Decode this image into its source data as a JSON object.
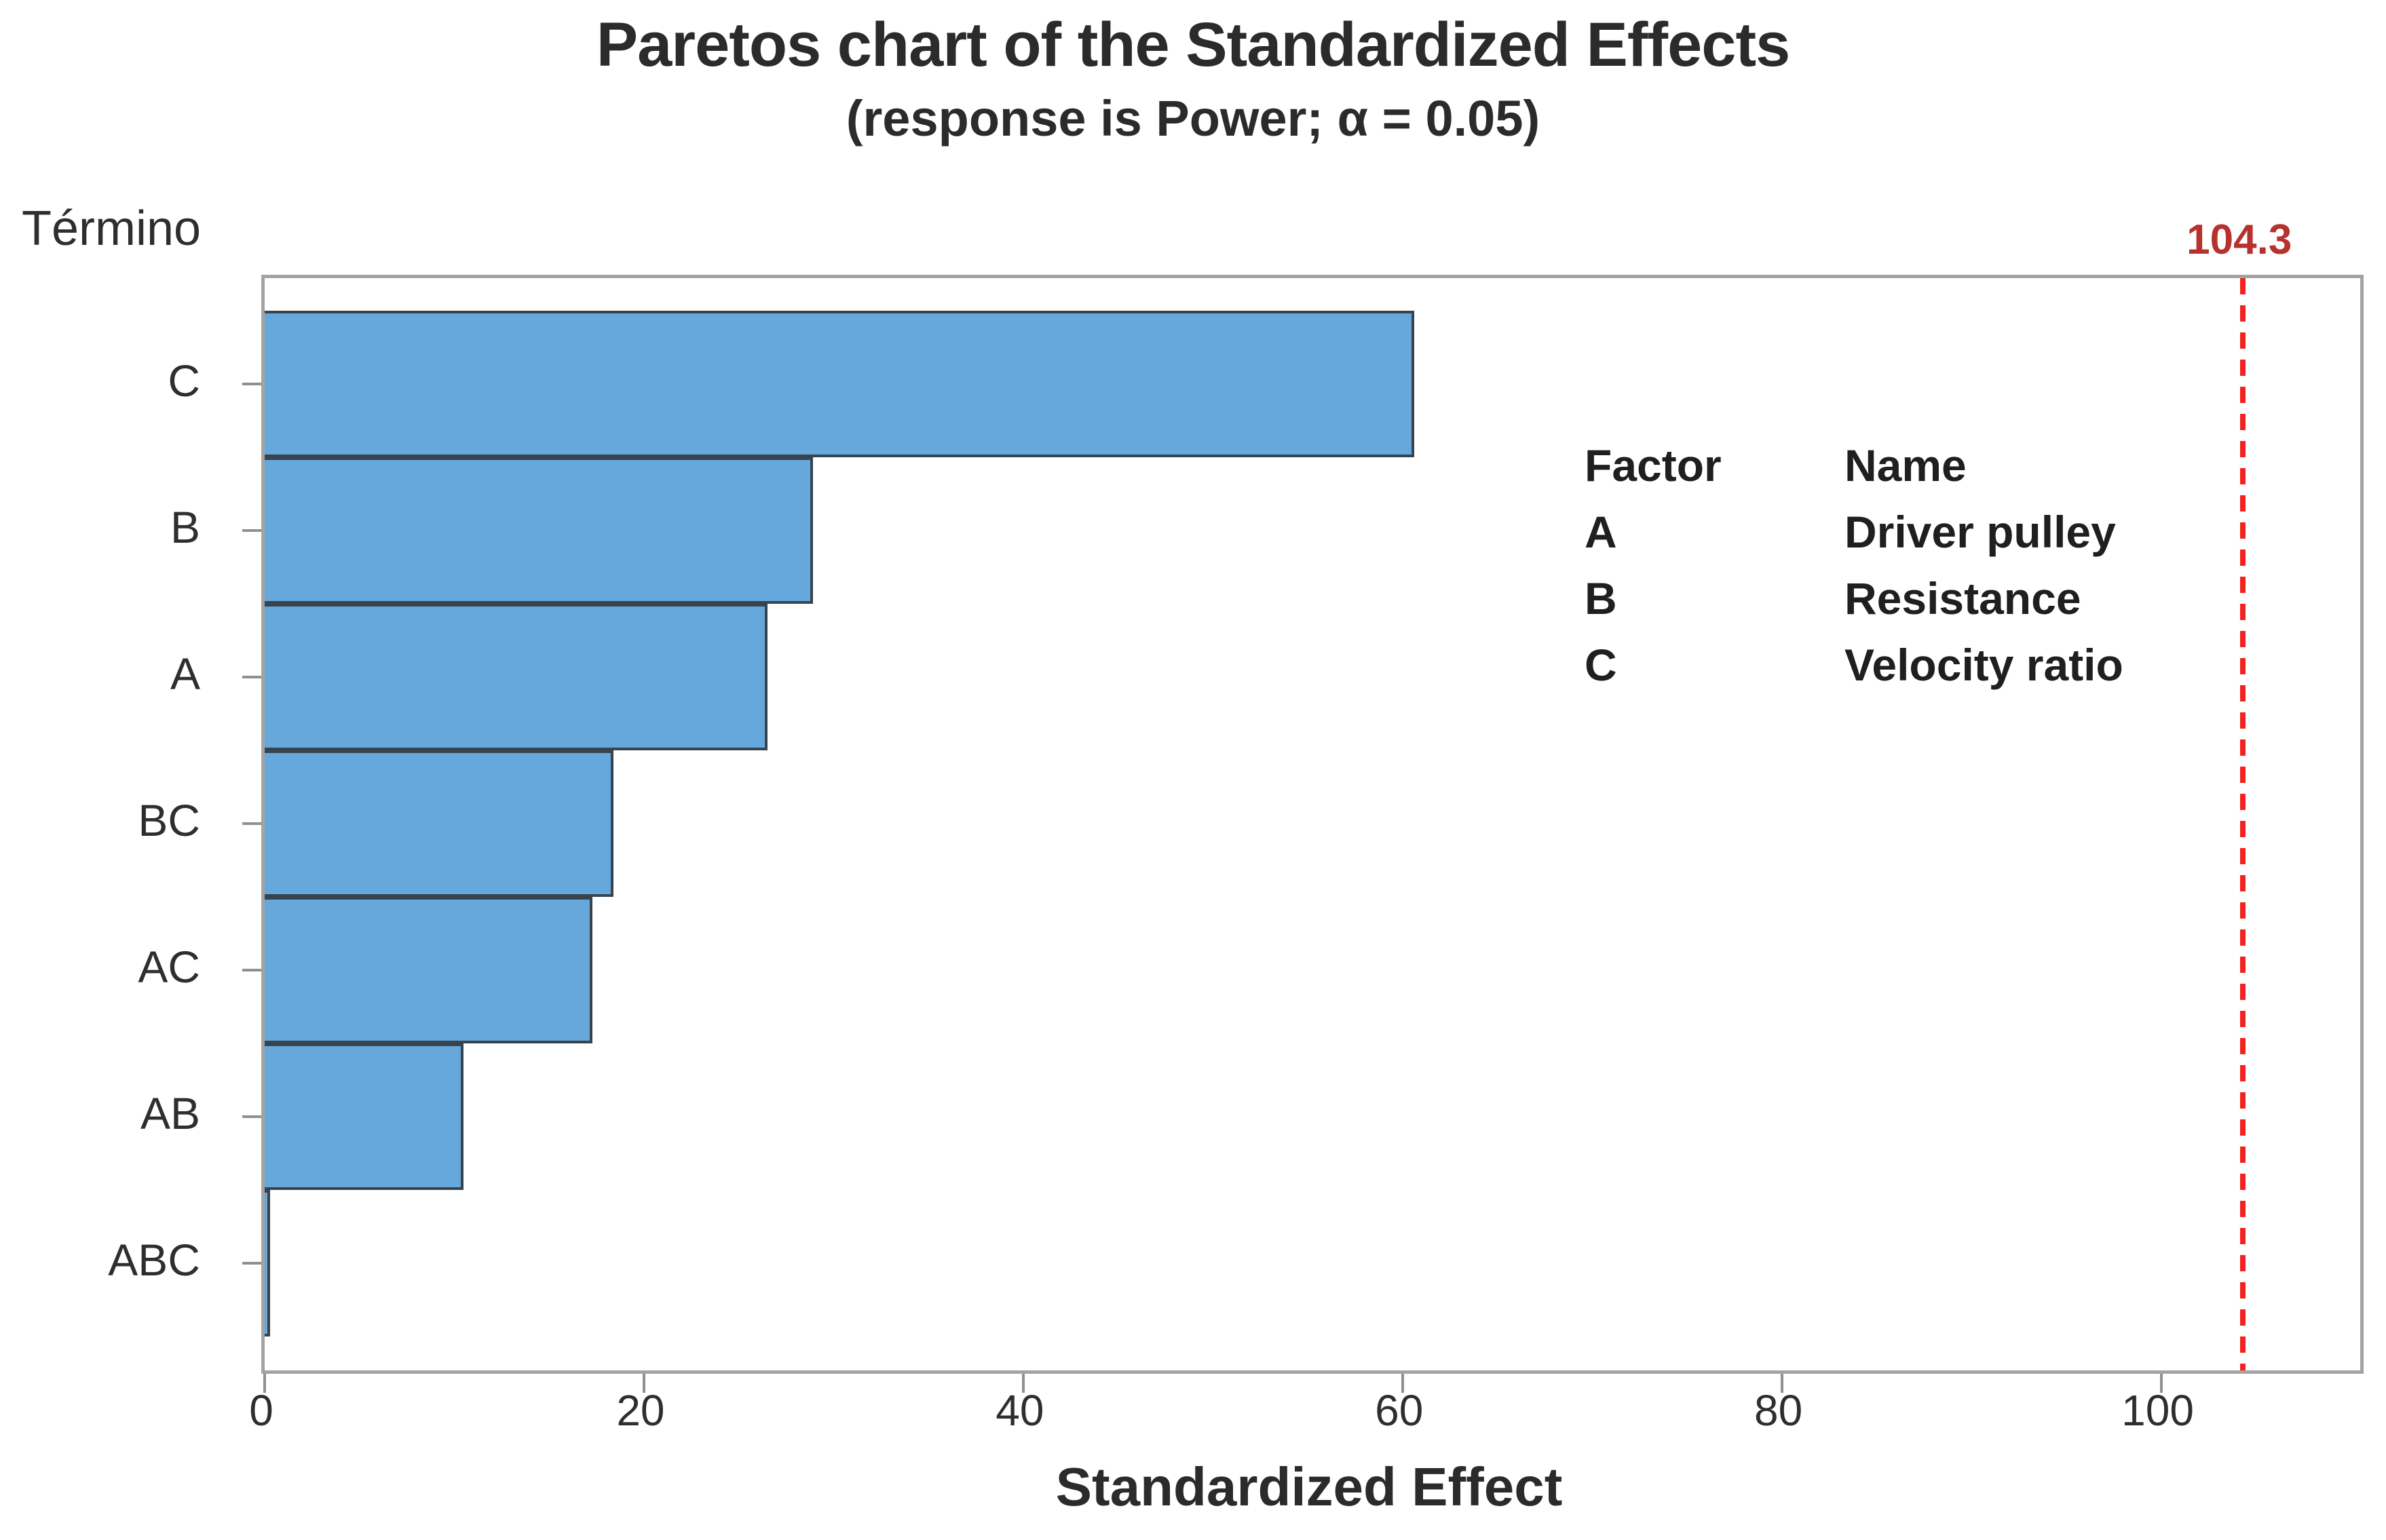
{
  "header": {
    "title": "Paretos chart of the Standardized Effects",
    "subtitle": "(response is Power; α = 0.05)"
  },
  "axes": {
    "y_label": "Término",
    "x_label": "Standardized Effect"
  },
  "reference_line": {
    "label": "104.3",
    "value": 104.3
  },
  "legend": {
    "factor_header": "Factor",
    "name_header": "Name",
    "rows": [
      {
        "factor": "A",
        "name": "Driver pulley"
      },
      {
        "factor": "B",
        "name": "Resistance"
      },
      {
        "factor": "C",
        "name": "Velocity ratio"
      }
    ]
  },
  "colors": {
    "bar_fill": "#66a8db",
    "bar_border": "#37444e",
    "plot_border_gray": "#a3a3a3",
    "tick_gray": "#909090",
    "ref_line_red": "#f2231e",
    "ref_label_red": "#b5322e",
    "text_dark": "#2e2e2e"
  },
  "chart_data": {
    "type": "bar",
    "orientation": "horizontal",
    "title": "Paretos chart of the Standardized Effects",
    "subtitle": "(response is Power; α = 0.05)",
    "xlabel": "Standardized Effect",
    "ylabel": "Término",
    "categories": [
      "C",
      "B",
      "A",
      "BC",
      "AC",
      "AB",
      "ABC"
    ],
    "values": [
      60.6,
      28.9,
      26.5,
      18.4,
      17.3,
      10.5,
      0.3
    ],
    "xticks": [
      0,
      20,
      40,
      60,
      80,
      100
    ],
    "xlim": [
      0,
      110.5
    ],
    "grid": "off",
    "reference_line_value": 104.3,
    "reference_line_label": "104.3",
    "legend_position": "inside-right",
    "legend_entries": {
      "A": "Driver pulley",
      "B": "Resistance",
      "C": "Velocity ratio"
    }
  }
}
